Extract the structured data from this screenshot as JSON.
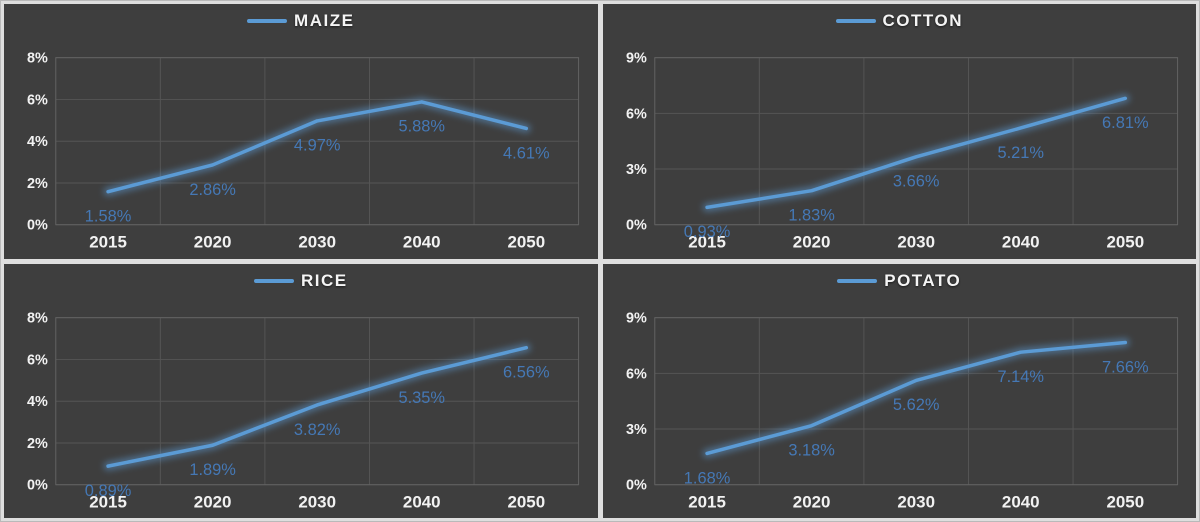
{
  "colors": {
    "accent_blue": "#5b9bd5",
    "data_label_blue": "#4578b5",
    "panel_background": "#3e3e3e",
    "gridline": "#555555",
    "plot_border": "#626262",
    "axis_text": "#f2f2f2"
  },
  "chart_data": [
    {
      "type": "line",
      "title": "MAIZE",
      "legend_position": "top",
      "grid": true,
      "categories": [
        "2015",
        "2020",
        "2030",
        "2040",
        "2050"
      ],
      "values": [
        1.58,
        2.86,
        4.97,
        5.88,
        4.61
      ],
      "point_labels": [
        "1.58%",
        "2.86%",
        "4.97%",
        "5.88%",
        "4.61%"
      ],
      "xlabel": "",
      "ylabel": "",
      "ylim": [
        0,
        8
      ],
      "yticks": [
        "8%",
        "6%",
        "4%",
        "2%",
        "0%"
      ]
    },
    {
      "type": "line",
      "title": "COTTON",
      "legend_position": "top",
      "grid": true,
      "categories": [
        "2015",
        "2020",
        "2030",
        "2040",
        "2050"
      ],
      "values": [
        0.93,
        1.83,
        3.66,
        5.21,
        6.81
      ],
      "point_labels": [
        "0.93%",
        "1.83%",
        "3.66%",
        "5.21%",
        "6.81%"
      ],
      "xlabel": "",
      "ylabel": "",
      "ylim": [
        0,
        9
      ],
      "yticks": [
        "9%",
        "6%",
        "3%",
        "0%"
      ]
    },
    {
      "type": "line",
      "title": "RICE",
      "legend_position": "top",
      "grid": true,
      "categories": [
        "2015",
        "2020",
        "2030",
        "2040",
        "2050"
      ],
      "values": [
        0.89,
        1.89,
        3.82,
        5.35,
        6.56
      ],
      "point_labels": [
        "0.89%",
        "1.89%",
        "3.82%",
        "5.35%",
        "6.56%"
      ],
      "xlabel": "",
      "ylabel": "",
      "ylim": [
        0,
        8
      ],
      "yticks": [
        "8%",
        "6%",
        "4%",
        "2%",
        "0%"
      ]
    },
    {
      "type": "line",
      "title": "POTATO",
      "legend_position": "top",
      "grid": true,
      "categories": [
        "2015",
        "2020",
        "2030",
        "2040",
        "2050"
      ],
      "values": [
        1.68,
        3.18,
        5.62,
        7.14,
        7.66
      ],
      "point_labels": [
        "1.68%",
        "3.18%",
        "5.62%",
        "7.14%",
        "7.66%"
      ],
      "xlabel": "",
      "ylabel": "",
      "ylim": [
        0,
        9
      ],
      "yticks": [
        "9%",
        "6%",
        "3%",
        "0%"
      ]
    }
  ]
}
